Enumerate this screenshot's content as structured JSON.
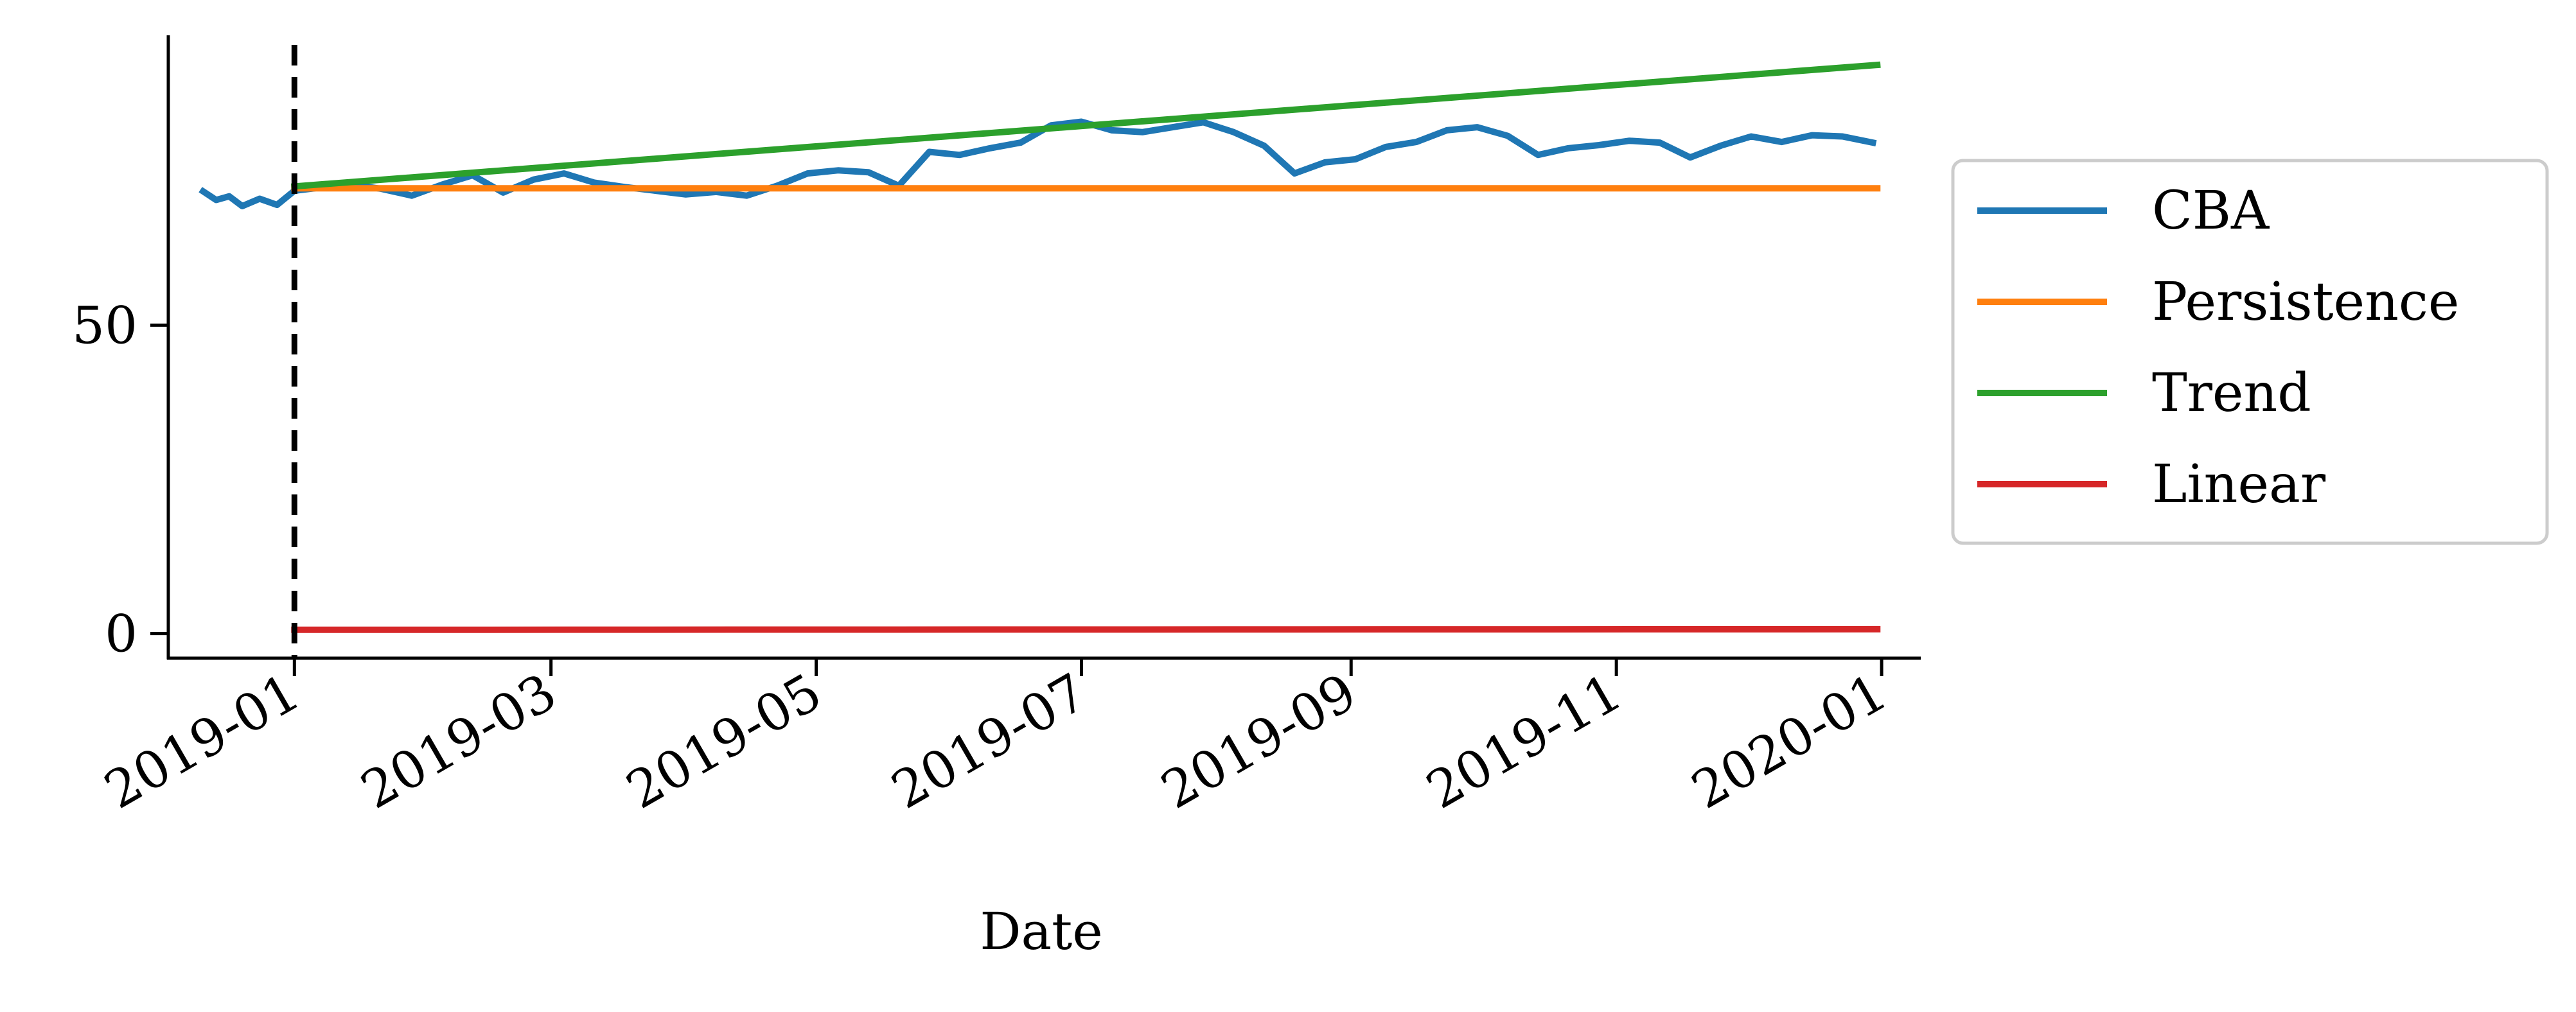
{
  "chart_data": {
    "type": "line",
    "title": "",
    "xlabel": "Date",
    "ylabel": "",
    "x_axis": {
      "kind": "date",
      "range": [
        "2018-12-03",
        "2020-01-10"
      ],
      "ticks": [
        "2019-01",
        "2019-03",
        "2019-05",
        "2019-07",
        "2019-09",
        "2019-11",
        "2020-01"
      ]
    },
    "y_axis": {
      "range": [
        -4,
        97
      ],
      "ticks": [
        0,
        50
      ]
    },
    "grid": false,
    "legend": {
      "placement": "outside-right"
    },
    "vline": {
      "x": "2019-01-01",
      "style": "dashed",
      "color": "#000000"
    },
    "series": [
      {
        "name": "CBA",
        "color": "#1f77b4",
        "points": [
          [
            "2018-12-11",
            71.7
          ],
          [
            "2018-12-14",
            70.3
          ],
          [
            "2018-12-17",
            70.9
          ],
          [
            "2018-12-20",
            69.3
          ],
          [
            "2018-12-24",
            70.5
          ],
          [
            "2018-12-28",
            69.5
          ],
          [
            "2019-01-01",
            71.8
          ],
          [
            "2019-01-07",
            72.3
          ],
          [
            "2019-01-14",
            72.8
          ],
          [
            "2019-01-21",
            72.1
          ],
          [
            "2019-01-28",
            71.0
          ],
          [
            "2019-02-04",
            72.8
          ],
          [
            "2019-02-11",
            74.3
          ],
          [
            "2019-02-18",
            71.5
          ],
          [
            "2019-02-25",
            73.6
          ],
          [
            "2019-03-04",
            74.6
          ],
          [
            "2019-03-11",
            73.1
          ],
          [
            "2019-03-18",
            72.4
          ],
          [
            "2019-03-25",
            71.8
          ],
          [
            "2019-04-01",
            71.2
          ],
          [
            "2019-04-08",
            71.6
          ],
          [
            "2019-04-15",
            71.0
          ],
          [
            "2019-04-22",
            72.6
          ],
          [
            "2019-04-29",
            74.6
          ],
          [
            "2019-05-06",
            75.1
          ],
          [
            "2019-05-13",
            74.8
          ],
          [
            "2019-05-20",
            72.6
          ],
          [
            "2019-05-27",
            78.1
          ],
          [
            "2019-06-03",
            77.6
          ],
          [
            "2019-06-10",
            78.7
          ],
          [
            "2019-06-17",
            79.6
          ],
          [
            "2019-06-24",
            82.4
          ],
          [
            "2019-07-01",
            83.0
          ],
          [
            "2019-07-08",
            81.6
          ],
          [
            "2019-07-15",
            81.3
          ],
          [
            "2019-07-22",
            82.1
          ],
          [
            "2019-07-29",
            82.9
          ],
          [
            "2019-08-05",
            81.3
          ],
          [
            "2019-08-12",
            79.1
          ],
          [
            "2019-08-19",
            74.6
          ],
          [
            "2019-08-26",
            76.4
          ],
          [
            "2019-09-02",
            76.9
          ],
          [
            "2019-09-09",
            78.9
          ],
          [
            "2019-09-16",
            79.7
          ],
          [
            "2019-09-23",
            81.6
          ],
          [
            "2019-09-30",
            82.1
          ],
          [
            "2019-10-07",
            80.7
          ],
          [
            "2019-10-14",
            77.6
          ],
          [
            "2019-10-21",
            78.7
          ],
          [
            "2019-10-28",
            79.2
          ],
          [
            "2019-11-04",
            79.9
          ],
          [
            "2019-11-11",
            79.6
          ],
          [
            "2019-11-18",
            77.2
          ],
          [
            "2019-11-25",
            79.1
          ],
          [
            "2019-12-02",
            80.6
          ],
          [
            "2019-12-09",
            79.7
          ],
          [
            "2019-12-16",
            80.8
          ],
          [
            "2019-12-23",
            80.6
          ],
          [
            "2019-12-30",
            79.6
          ]
        ]
      },
      {
        "name": "Persistence",
        "color": "#ff7f0e",
        "points": [
          [
            "2019-01-01",
            72.2
          ],
          [
            "2019-12-31",
            72.2
          ]
        ]
      },
      {
        "name": "Trend",
        "color": "#2ca02c",
        "points": [
          [
            "2019-01-01",
            72.5
          ],
          [
            "2019-12-31",
            92.2
          ]
        ]
      },
      {
        "name": "Linear",
        "color": "#d62728",
        "points": [
          [
            "2019-01-01",
            0.6
          ],
          [
            "2019-12-31",
            0.7
          ]
        ]
      }
    ]
  }
}
